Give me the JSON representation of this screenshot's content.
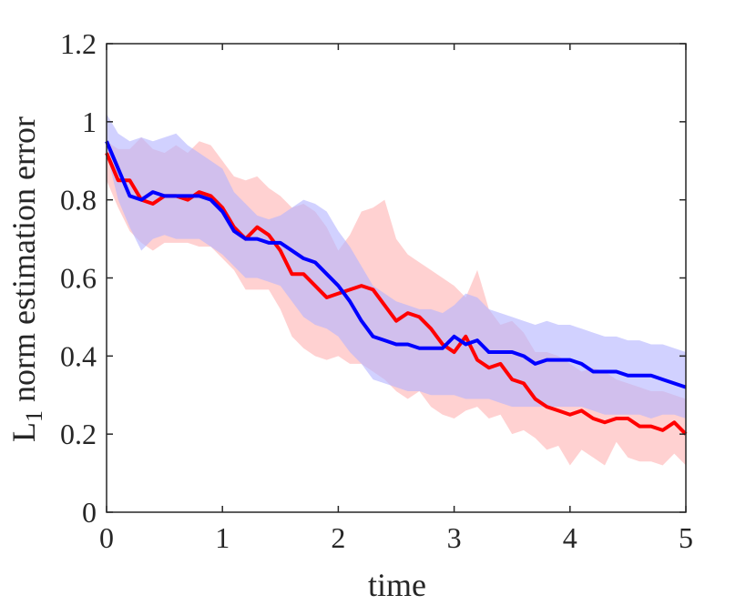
{
  "chart_data": {
    "type": "line",
    "title": "",
    "xlabel": "time",
    "ylabel_main": "L",
    "ylabel_sub": "1",
    "ylabel_rest": " norm estimation error",
    "xlim": [
      0,
      5
    ],
    "ylim": [
      0,
      1.2
    ],
    "xticks": [
      0,
      1,
      2,
      3,
      4,
      5
    ],
    "xtick_labels": [
      "0",
      "1",
      "2",
      "3",
      "4",
      "5"
    ],
    "yticks": [
      0,
      0.2,
      0.4,
      0.6,
      0.8,
      1,
      1.2
    ],
    "ytick_labels": [
      "0",
      "0.2",
      "0.4",
      "0.6",
      "0.8",
      "1",
      "1.2"
    ],
    "x": [
      0,
      0.1,
      0.2,
      0.3,
      0.4,
      0.5,
      0.6,
      0.7,
      0.8,
      0.9,
      1.0,
      1.1,
      1.2,
      1.3,
      1.4,
      1.5,
      1.6,
      1.7,
      1.8,
      1.9,
      2.0,
      2.1,
      2.2,
      2.3,
      2.4,
      2.5,
      2.6,
      2.7,
      2.8,
      2.9,
      3.0,
      3.1,
      3.2,
      3.3,
      3.4,
      3.5,
      3.6,
      3.7,
      3.8,
      3.9,
      4.0,
      4.1,
      4.2,
      4.3,
      4.4,
      4.5,
      4.6,
      4.7,
      4.8,
      4.9,
      5.0
    ],
    "series": [
      {
        "name": "red",
        "color": "#ff0000",
        "band_color": "#ffb3b3",
        "values": [
          0.92,
          0.85,
          0.85,
          0.8,
          0.79,
          0.81,
          0.81,
          0.8,
          0.82,
          0.81,
          0.78,
          0.73,
          0.7,
          0.73,
          0.71,
          0.67,
          0.61,
          0.61,
          0.58,
          0.55,
          0.56,
          0.57,
          0.58,
          0.57,
          0.53,
          0.49,
          0.51,
          0.5,
          0.47,
          0.43,
          0.41,
          0.45,
          0.39,
          0.37,
          0.38,
          0.34,
          0.33,
          0.29,
          0.27,
          0.26,
          0.25,
          0.26,
          0.24,
          0.23,
          0.24,
          0.24,
          0.22,
          0.22,
          0.21,
          0.23,
          0.2
        ],
        "lower": [
          0.85,
          0.78,
          0.72,
          0.69,
          0.67,
          0.69,
          0.69,
          0.69,
          0.68,
          0.68,
          0.65,
          0.62,
          0.57,
          0.57,
          0.57,
          0.52,
          0.45,
          0.42,
          0.4,
          0.39,
          0.4,
          0.38,
          0.38,
          0.36,
          0.34,
          0.31,
          0.29,
          0.31,
          0.27,
          0.25,
          0.24,
          0.26,
          0.27,
          0.24,
          0.25,
          0.2,
          0.21,
          0.19,
          0.16,
          0.17,
          0.12,
          0.16,
          0.14,
          0.12,
          0.18,
          0.14,
          0.13,
          0.13,
          0.12,
          0.15,
          0.12
        ],
        "upper": [
          0.95,
          0.93,
          0.93,
          0.96,
          0.93,
          0.92,
          0.94,
          0.92,
          0.95,
          0.94,
          0.9,
          0.86,
          0.85,
          0.86,
          0.83,
          0.81,
          0.78,
          0.79,
          0.77,
          0.73,
          0.67,
          0.71,
          0.77,
          0.78,
          0.8,
          0.7,
          0.66,
          0.64,
          0.62,
          0.6,
          0.58,
          0.55,
          0.62,
          0.52,
          0.48,
          0.49,
          0.46,
          0.41,
          0.41,
          0.4,
          0.38,
          0.36,
          0.37,
          0.36,
          0.34,
          0.33,
          0.32,
          0.31,
          0.31,
          0.3,
          0.29
        ]
      },
      {
        "name": "blue",
        "color": "#0000ff",
        "band_color": "#b3b3ff",
        "values": [
          0.95,
          0.88,
          0.81,
          0.8,
          0.82,
          0.81,
          0.81,
          0.81,
          0.81,
          0.8,
          0.77,
          0.72,
          0.7,
          0.7,
          0.69,
          0.69,
          0.67,
          0.65,
          0.64,
          0.61,
          0.58,
          0.54,
          0.49,
          0.45,
          0.44,
          0.43,
          0.43,
          0.42,
          0.42,
          0.42,
          0.45,
          0.43,
          0.44,
          0.41,
          0.41,
          0.41,
          0.4,
          0.38,
          0.39,
          0.39,
          0.39,
          0.38,
          0.36,
          0.36,
          0.36,
          0.35,
          0.35,
          0.35,
          0.34,
          0.33,
          0.32
        ],
        "lower": [
          0.92,
          0.8,
          0.73,
          0.67,
          0.7,
          0.71,
          0.7,
          0.7,
          0.7,
          0.68,
          0.66,
          0.63,
          0.6,
          0.6,
          0.59,
          0.58,
          0.54,
          0.5,
          0.48,
          0.47,
          0.45,
          0.41,
          0.38,
          0.34,
          0.33,
          0.32,
          0.31,
          0.31,
          0.3,
          0.3,
          0.3,
          0.29,
          0.29,
          0.29,
          0.28,
          0.27,
          0.27,
          0.27,
          0.27,
          0.27,
          0.27,
          0.27,
          0.26,
          0.25,
          0.25,
          0.25,
          0.25,
          0.24,
          0.25,
          0.25,
          0.24
        ],
        "upper": [
          1.02,
          0.97,
          0.95,
          0.96,
          0.95,
          0.96,
          0.97,
          0.94,
          0.92,
          0.9,
          0.88,
          0.82,
          0.79,
          0.76,
          0.75,
          0.76,
          0.78,
          0.8,
          0.79,
          0.77,
          0.72,
          0.68,
          0.63,
          0.58,
          0.56,
          0.54,
          0.53,
          0.52,
          0.52,
          0.51,
          0.53,
          0.56,
          0.55,
          0.52,
          0.51,
          0.5,
          0.49,
          0.48,
          0.49,
          0.48,
          0.48,
          0.47,
          0.46,
          0.45,
          0.45,
          0.44,
          0.44,
          0.43,
          0.43,
          0.42,
          0.41
        ]
      }
    ]
  }
}
